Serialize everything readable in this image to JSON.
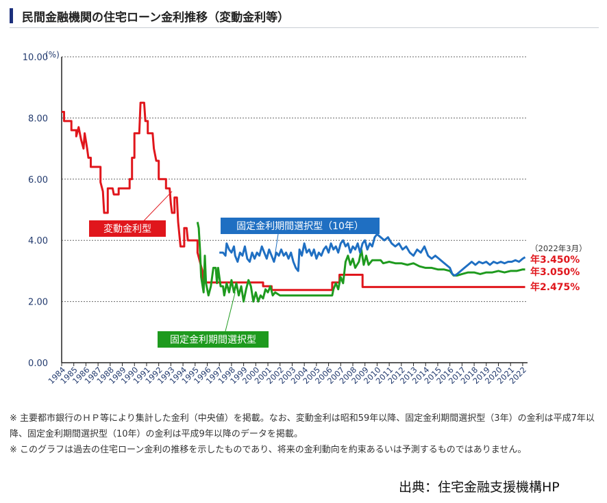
{
  "header": {
    "title": "民間金融機関の住宅ローン金利推移（変動金利等）"
  },
  "chart_data": {
    "type": "line",
    "ylabel": "(%)",
    "ylim": [
      0,
      10
    ],
    "yticks": [
      "0.00",
      "2.00",
      "4.00",
      "6.00",
      "8.00",
      "10.00"
    ],
    "xlim": [
      1984,
      2022.4
    ],
    "xticks": [
      "1984",
      "1985",
      "1986",
      "1987",
      "1988",
      "1989",
      "1990",
      "1991",
      "1992",
      "1993",
      "1994",
      "1995",
      "1996",
      "1997",
      "1998",
      "1999",
      "2000",
      "2001",
      "2002",
      "2003",
      "2004",
      "2005",
      "2006",
      "2007",
      "2008",
      "2009",
      "2010",
      "2011",
      "2012",
      "2013",
      "2014",
      "2015",
      "2016",
      "2017",
      "2018",
      "2019",
      "2020",
      "2021",
      "2022"
    ],
    "grid": "horizontal-dotted",
    "series": [
      {
        "name": "変動金利型",
        "color": "#e0161c",
        "points": [
          [
            1984,
            8.2
          ],
          [
            1984.2,
            8.2
          ],
          [
            1984.2,
            7.9
          ],
          [
            1984.8,
            7.9
          ],
          [
            1984.8,
            7.6
          ],
          [
            1985.2,
            7.6
          ],
          [
            1985.2,
            7.4
          ],
          [
            1985.4,
            7.7
          ],
          [
            1985.6,
            7.3
          ],
          [
            1985.8,
            7.0
          ],
          [
            1985.9,
            7.5
          ],
          [
            1986.1,
            7.0
          ],
          [
            1986.2,
            6.7
          ],
          [
            1986.4,
            6.7
          ],
          [
            1986.4,
            6.4
          ],
          [
            1987.2,
            6.4
          ],
          [
            1987.2,
            5.9
          ],
          [
            1987.4,
            5.6
          ],
          [
            1987.5,
            4.9
          ],
          [
            1987.8,
            4.9
          ],
          [
            1987.8,
            5.7
          ],
          [
            1988.2,
            5.7
          ],
          [
            1988.3,
            5.5
          ],
          [
            1988.7,
            5.5
          ],
          [
            1988.7,
            5.7
          ],
          [
            1989.6,
            5.7
          ],
          [
            1989.6,
            6.0
          ],
          [
            1989.8,
            6.0
          ],
          [
            1989.8,
            6.7
          ],
          [
            1990.0,
            6.7
          ],
          [
            1990.0,
            7.5
          ],
          [
            1990.4,
            7.5
          ],
          [
            1990.5,
            8.5
          ],
          [
            1990.8,
            8.5
          ],
          [
            1990.9,
            7.9
          ],
          [
            1991.1,
            7.9
          ],
          [
            1991.1,
            7.5
          ],
          [
            1991.5,
            7.5
          ],
          [
            1991.6,
            7.0
          ],
          [
            1991.8,
            6.6
          ],
          [
            1992.0,
            6.6
          ],
          [
            1992.0,
            6.0
          ],
          [
            1992.6,
            6.0
          ],
          [
            1992.6,
            5.7
          ],
          [
            1992.9,
            5.7
          ],
          [
            1993.0,
            5.2
          ],
          [
            1993.1,
            4.9
          ],
          [
            1993.3,
            4.9
          ],
          [
            1993.3,
            5.4
          ],
          [
            1993.5,
            5.4
          ],
          [
            1993.6,
            4.6
          ],
          [
            1993.8,
            3.8
          ],
          [
            1994.1,
            3.8
          ],
          [
            1994.1,
            4.4
          ],
          [
            1994.3,
            4.4
          ],
          [
            1994.4,
            4.0
          ],
          [
            1995.2,
            4.0
          ],
          [
            1995.2,
            3.6
          ],
          [
            1995.6,
            3.0
          ],
          [
            1995.6,
            2.625
          ],
          [
            2000.6,
            2.625
          ],
          [
            2000.6,
            2.5
          ],
          [
            2001.3,
            2.5
          ],
          [
            2001.3,
            2.375
          ],
          [
            2006.3,
            2.375
          ],
          [
            2006.3,
            2.625
          ],
          [
            2006.9,
            2.625
          ],
          [
            2006.9,
            2.875
          ],
          [
            2008.8,
            2.875
          ],
          [
            2008.8,
            2.475
          ],
          [
            2022.2,
            2.475
          ]
        ]
      },
      {
        "name": "固定金利期間選択型",
        "color": "#1e9a1e",
        "points": [
          [
            1995.2,
            4.6
          ],
          [
            1995.3,
            4.4
          ],
          [
            1995.4,
            3.7
          ],
          [
            1995.5,
            2.8
          ],
          [
            1995.7,
            2.3
          ],
          [
            1995.8,
            3.5
          ],
          [
            1995.9,
            2.6
          ],
          [
            1996.1,
            2.2
          ],
          [
            1996.3,
            2.5
          ],
          [
            1996.5,
            3.1
          ],
          [
            1996.7,
            3.1
          ],
          [
            1996.8,
            2.6
          ],
          [
            1996.9,
            3.1
          ],
          [
            1997.1,
            2.5
          ],
          [
            1997.3,
            2.5
          ],
          [
            1997.4,
            2.2
          ],
          [
            1997.6,
            2.6
          ],
          [
            1997.8,
            2.3
          ],
          [
            1998.0,
            2.7
          ],
          [
            1998.2,
            2.3
          ],
          [
            1998.4,
            2.6
          ],
          [
            1998.6,
            2.2
          ],
          [
            1998.8,
            2.5
          ],
          [
            1999.0,
            2.0
          ],
          [
            1999.2,
            2.4
          ],
          [
            1999.4,
            2.7
          ],
          [
            1999.6,
            2.5
          ],
          [
            1999.8,
            2.0
          ],
          [
            2000.0,
            2.3
          ],
          [
            2000.2,
            2.0
          ],
          [
            2000.4,
            2.2
          ],
          [
            2000.6,
            2.1
          ],
          [
            2000.8,
            2.4
          ],
          [
            2001.0,
            2.3
          ],
          [
            2001.2,
            2.5
          ],
          [
            2001.4,
            2.2
          ],
          [
            2001.6,
            2.3
          ],
          [
            2002.0,
            2.2
          ],
          [
            2006.3,
            2.2
          ],
          [
            2006.4,
            2.4
          ],
          [
            2006.6,
            2.6
          ],
          [
            2006.8,
            2.4
          ],
          [
            2007.0,
            2.8
          ],
          [
            2007.2,
            2.6
          ],
          [
            2007.4,
            3.3
          ],
          [
            2007.6,
            3.5
          ],
          [
            2007.8,
            3.2
          ],
          [
            2008.0,
            3.4
          ],
          [
            2008.2,
            3.1
          ],
          [
            2008.5,
            3.3
          ],
          [
            2008.7,
            3.7
          ],
          [
            2008.9,
            3.2
          ],
          [
            2009.1,
            3.5
          ],
          [
            2009.3,
            3.2
          ],
          [
            2009.6,
            3.35
          ],
          [
            2010.3,
            3.35
          ],
          [
            2010.5,
            3.25
          ],
          [
            2011.0,
            3.3
          ],
          [
            2011.5,
            3.25
          ],
          [
            2012.0,
            3.25
          ],
          [
            2012.5,
            3.2
          ],
          [
            2013.0,
            3.25
          ],
          [
            2013.5,
            3.15
          ],
          [
            2014.0,
            3.1
          ],
          [
            2014.5,
            3.1
          ],
          [
            2015.0,
            3.05
          ],
          [
            2015.5,
            3.05
          ],
          [
            2016.0,
            3.0
          ],
          [
            2016.3,
            2.85
          ],
          [
            2016.6,
            2.85
          ],
          [
            2017.0,
            2.9
          ],
          [
            2017.5,
            2.95
          ],
          [
            2018.0,
            2.95
          ],
          [
            2018.5,
            2.9
          ],
          [
            2019.0,
            2.95
          ],
          [
            2019.5,
            2.95
          ],
          [
            2020.0,
            3.0
          ],
          [
            2020.5,
            2.95
          ],
          [
            2021.0,
            3.0
          ],
          [
            2021.5,
            3.0
          ],
          [
            2022.0,
            3.05
          ],
          [
            2022.2,
            3.05
          ]
        ]
      },
      {
        "name": "固定金利期間選択型（10年）",
        "color": "#1f6fc2",
        "points": [
          [
            1997.0,
            3.6
          ],
          [
            1997.3,
            3.6
          ],
          [
            1997.5,
            3.5
          ],
          [
            1997.6,
            3.9
          ],
          [
            1997.8,
            3.7
          ],
          [
            1998.0,
            3.6
          ],
          [
            1998.2,
            3.8
          ],
          [
            1998.3,
            3.5
          ],
          [
            1998.5,
            3.3
          ],
          [
            1998.7,
            3.6
          ],
          [
            1998.9,
            3.5
          ],
          [
            1999.1,
            3.8
          ],
          [
            1999.3,
            3.4
          ],
          [
            1999.5,
            3.3
          ],
          [
            1999.7,
            3.6
          ],
          [
            1999.9,
            3.4
          ],
          [
            2000.1,
            3.6
          ],
          [
            2000.3,
            3.5
          ],
          [
            2000.5,
            3.8
          ],
          [
            2000.7,
            3.6
          ],
          [
            2000.9,
            3.4
          ],
          [
            2001.1,
            3.7
          ],
          [
            2001.3,
            3.5
          ],
          [
            2001.5,
            3.3
          ],
          [
            2001.7,
            3.6
          ],
          [
            2001.9,
            3.5
          ],
          [
            2002.1,
            3.7
          ],
          [
            2002.3,
            3.5
          ],
          [
            2002.5,
            3.6
          ],
          [
            2002.7,
            3.4
          ],
          [
            2002.9,
            3.6
          ],
          [
            2003.1,
            3.3
          ],
          [
            2003.3,
            3.1
          ],
          [
            2003.5,
            3.0
          ],
          [
            2003.6,
            3.7
          ],
          [
            2003.8,
            3.5
          ],
          [
            2004.0,
            3.9
          ],
          [
            2004.2,
            3.6
          ],
          [
            2004.4,
            3.7
          ],
          [
            2004.6,
            3.5
          ],
          [
            2004.8,
            3.7
          ],
          [
            2005.0,
            3.4
          ],
          [
            2005.2,
            3.6
          ],
          [
            2005.4,
            3.5
          ],
          [
            2005.6,
            3.7
          ],
          [
            2005.8,
            3.8
          ],
          [
            2006.0,
            3.6
          ],
          [
            2006.2,
            3.9
          ],
          [
            2006.4,
            3.7
          ],
          [
            2006.6,
            3.8
          ],
          [
            2006.8,
            3.6
          ],
          [
            2007.0,
            3.9
          ],
          [
            2007.2,
            4.0
          ],
          [
            2007.4,
            3.8
          ],
          [
            2007.6,
            3.9
          ],
          [
            2007.8,
            3.6
          ],
          [
            2008.0,
            3.8
          ],
          [
            2008.2,
            3.7
          ],
          [
            2008.4,
            3.9
          ],
          [
            2008.6,
            3.6
          ],
          [
            2008.8,
            3.9
          ],
          [
            2009.0,
            4.0
          ],
          [
            2009.2,
            3.7
          ],
          [
            2009.4,
            3.9
          ],
          [
            2009.6,
            3.8
          ],
          [
            2009.8,
            4.1
          ],
          [
            2010.0,
            4.2
          ],
          [
            2010.3,
            4.1
          ],
          [
            2010.6,
            4.0
          ],
          [
            2010.9,
            4.1
          ],
          [
            2011.2,
            3.9
          ],
          [
            2011.5,
            3.8
          ],
          [
            2011.8,
            3.9
          ],
          [
            2012.1,
            3.7
          ],
          [
            2012.4,
            3.8
          ],
          [
            2012.7,
            3.6
          ],
          [
            2013.0,
            3.5
          ],
          [
            2013.3,
            3.7
          ],
          [
            2013.6,
            3.6
          ],
          [
            2013.9,
            3.8
          ],
          [
            2014.2,
            3.5
          ],
          [
            2014.5,
            3.4
          ],
          [
            2014.8,
            3.5
          ],
          [
            2015.1,
            3.4
          ],
          [
            2015.4,
            3.3
          ],
          [
            2015.7,
            3.2
          ],
          [
            2016.0,
            3.1
          ],
          [
            2016.2,
            2.9
          ],
          [
            2016.4,
            2.85
          ],
          [
            2016.6,
            2.9
          ],
          [
            2016.9,
            3.0
          ],
          [
            2017.2,
            3.1
          ],
          [
            2017.5,
            3.2
          ],
          [
            2017.8,
            3.3
          ],
          [
            2018.1,
            3.2
          ],
          [
            2018.4,
            3.3
          ],
          [
            2018.7,
            3.25
          ],
          [
            2019.0,
            3.3
          ],
          [
            2019.3,
            3.2
          ],
          [
            2019.6,
            3.3
          ],
          [
            2019.9,
            3.25
          ],
          [
            2020.2,
            3.3
          ],
          [
            2020.5,
            3.25
          ],
          [
            2020.8,
            3.3
          ],
          [
            2021.1,
            3.3
          ],
          [
            2021.4,
            3.35
          ],
          [
            2021.7,
            3.3
          ],
          [
            2022.0,
            3.4
          ],
          [
            2022.2,
            3.45
          ]
        ]
      }
    ],
    "callouts": [
      {
        "text": "変動金利型",
        "color": "#e0161c"
      },
      {
        "text": "固定金利期間選択型（10年）",
        "color": "#1f6fc2"
      },
      {
        "text": "固定金利期間選択型",
        "color": "#1e9a1e"
      }
    ],
    "end_note": "（2022年3月）",
    "end_labels": [
      "年3.450%",
      "年3.050%",
      "年2.475%"
    ]
  },
  "notes": {
    "line1": "※ 主要都市銀行のＨＰ等により集計した金利（中央値）を掲載。なお、変動金利は昭和59年以降、固定金利期間選択型（3年）の金利は平成7年以降、固定金利期間選択型（10年）の金利は平成9年以降のデータを掲載。",
    "line2": "※ このグラフは過去の住宅ローン金利の推移を示したものであり、将来の金利動向を約束あるいは予測するものではありません。"
  },
  "source": "出典：住宅金融支援機構HP"
}
